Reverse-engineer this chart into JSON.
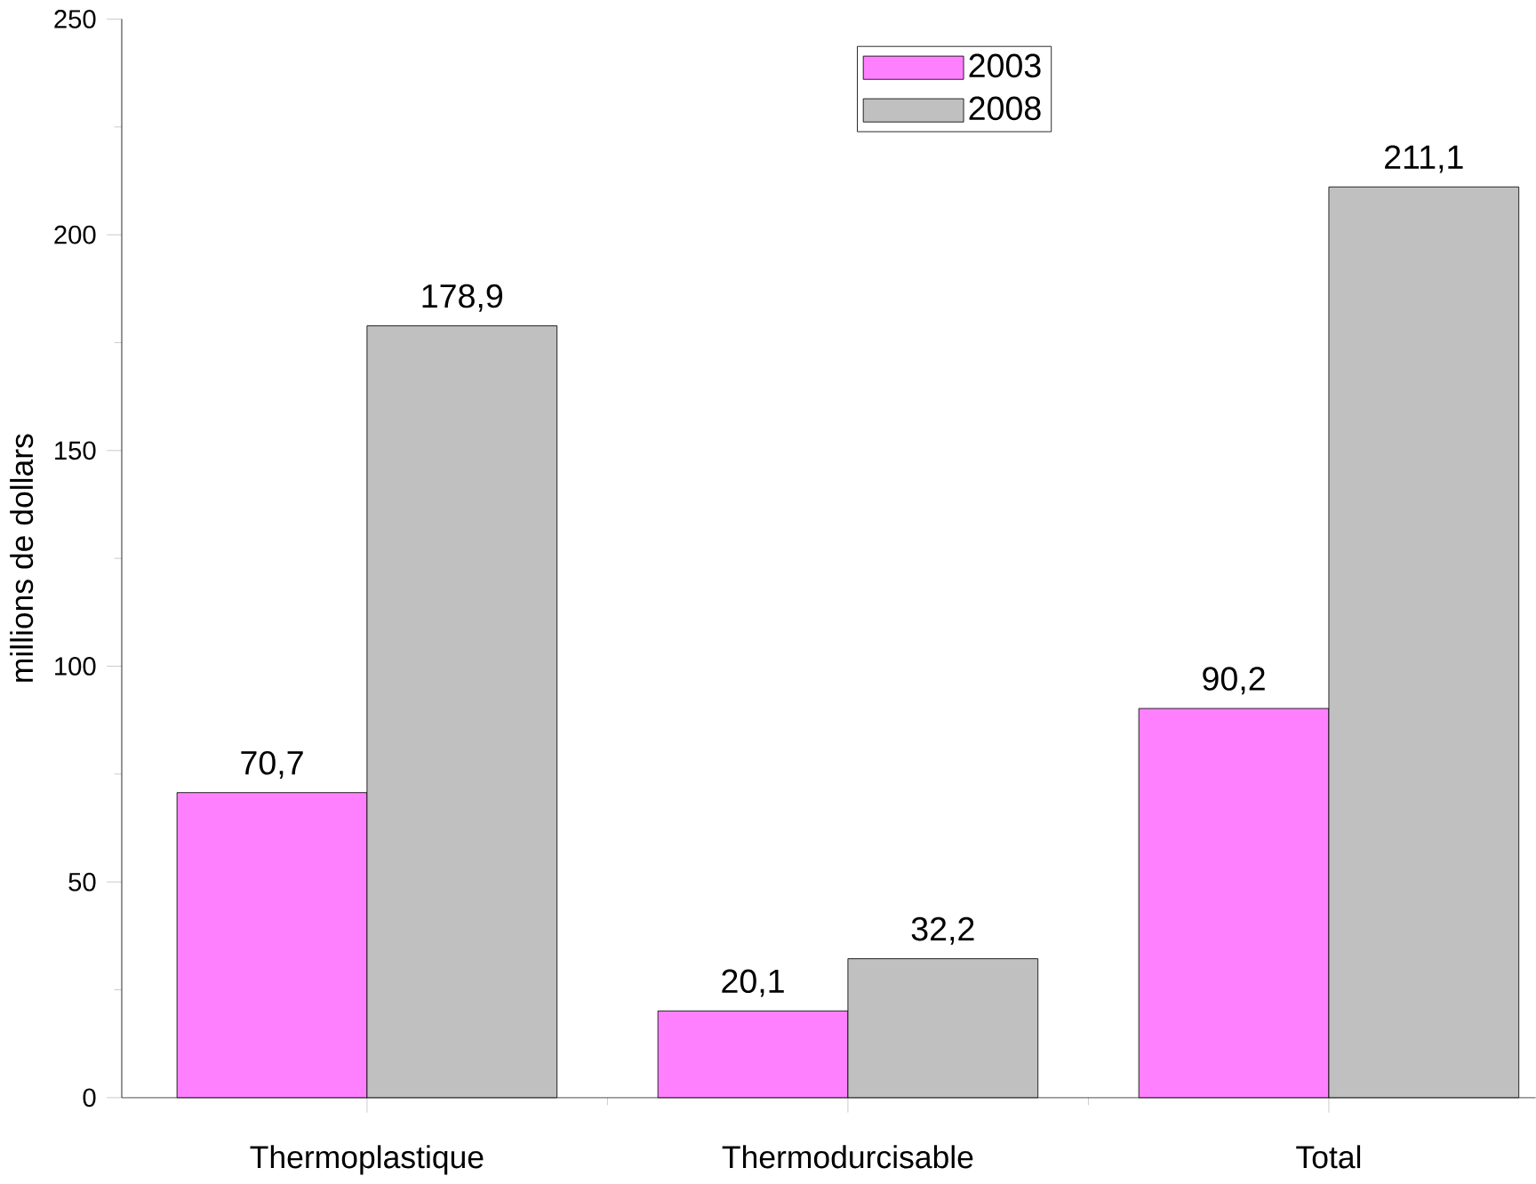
{
  "chart_data": {
    "type": "bar",
    "ylabel": "millions de dollars",
    "categories": [
      "Thermoplastique",
      "Thermodurcisable",
      "Total"
    ],
    "series": [
      {
        "name": "2003",
        "color": "#ff80ff",
        "values": [
          70.7,
          20.1,
          90.2
        ],
        "value_labels": [
          "70,7",
          "20,1",
          "90,2"
        ]
      },
      {
        "name": "2008",
        "color": "#c0c0c0",
        "values": [
          178.9,
          32.2,
          211.1
        ],
        "value_labels": [
          "178,9",
          "32,2",
          "211,1"
        ]
      }
    ],
    "ylim": [
      0,
      250
    ],
    "yticks": [
      0,
      50,
      100,
      150,
      200,
      250
    ],
    "grid": false,
    "legend": "top right"
  }
}
